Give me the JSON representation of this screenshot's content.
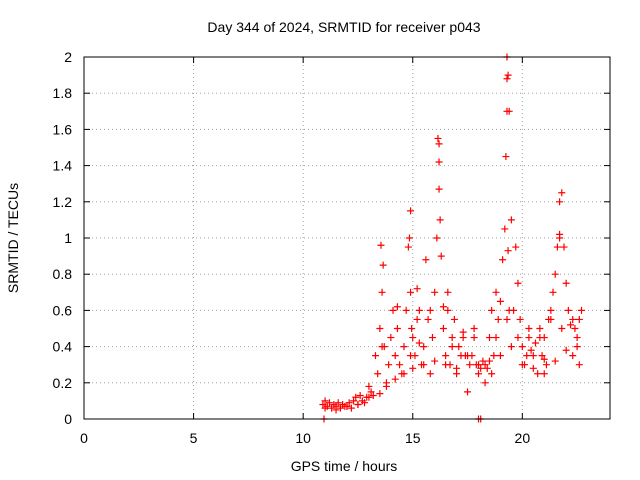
{
  "chart_data": {
    "type": "scatter",
    "title": "Day 344 of 2024, SRMTID for receiver p043",
    "xlabel": "GPS time / hours",
    "ylabel": "SRMTID / TECUs",
    "xlim": [
      0,
      24
    ],
    "ylim": [
      0,
      2
    ],
    "xticks": [
      0,
      5,
      10,
      15,
      20
    ],
    "xtick_labels": [
      "0",
      "5",
      "10",
      "15",
      "20"
    ],
    "yticks": [
      0,
      0.2,
      0.4,
      0.6,
      0.8,
      1,
      1.2,
      1.4,
      1.6,
      1.8,
      2
    ],
    "ytick_labels": [
      "0",
      "0.2",
      "0.4",
      "0.6",
      "0.8",
      "1",
      "1.2",
      "1.4",
      "1.6",
      "1.8",
      "2"
    ],
    "grid": true,
    "marker": "+",
    "marker_color": "#ff0000",
    "series": [
      {
        "name": "SRMTID",
        "x": [
          10.9,
          11.0,
          11.1,
          11.2,
          11.3,
          11.4,
          11.5,
          11.6,
          11.7,
          11.8,
          11.9,
          12.0,
          12.1,
          12.2,
          12.3,
          12.4,
          12.5,
          12.6,
          12.7,
          12.8,
          12.9,
          13.0,
          13.1,
          13.2,
          13.3,
          13.4,
          13.5,
          13.55,
          13.6,
          13.7,
          13.8,
          13.9,
          14.0,
          14.1,
          14.2,
          14.3,
          14.4,
          14.5,
          14.6,
          14.7,
          14.8,
          14.85,
          14.9,
          14.95,
          15.0,
          15.1,
          15.2,
          15.3,
          15.4,
          15.5,
          15.6,
          15.7,
          15.8,
          15.9,
          16.0,
          16.1,
          16.15,
          16.2,
          16.25,
          16.3,
          16.4,
          16.5,
          16.6,
          16.7,
          16.8,
          16.9,
          17.0,
          17.1,
          17.2,
          17.3,
          17.4,
          17.5,
          17.6,
          17.7,
          17.8,
          17.9,
          18.0,
          18.1,
          18.2,
          18.3,
          18.4,
          18.5,
          18.6,
          18.7,
          18.8,
          18.9,
          19.0,
          19.1,
          19.2,
          19.25,
          19.3,
          19.35,
          19.4,
          19.5,
          19.6,
          19.7,
          19.8,
          19.9,
          20.0,
          20.1,
          20.2,
          20.3,
          20.4,
          20.5,
          20.6,
          20.7,
          20.8,
          20.9,
          21.0,
          21.1,
          21.2,
          21.3,
          21.4,
          21.5,
          21.6,
          21.7,
          21.8,
          21.9,
          22.0,
          22.1,
          22.2,
          22.3,
          22.4,
          22.5,
          22.6,
          22.7,
          11.0,
          11.5,
          12.0,
          12.5,
          13.0,
          13.5,
          13.8,
          14.2,
          14.6,
          15.0,
          15.5,
          16.0,
          16.5,
          17.0,
          17.5,
          18.0,
          18.5,
          19.0,
          19.5,
          20.0,
          20.5,
          21.0,
          21.5,
          22.0,
          22.5,
          13.6,
          14.3,
          14.9,
          15.3,
          15.8,
          16.4,
          16.8,
          17.3,
          17.8,
          18.3,
          18.8,
          19.4,
          19.8,
          20.3,
          20.8,
          21.3,
          21.8,
          22.3,
          22.6,
          15.2,
          16.6,
          18.6,
          21.0,
          19.3,
          19.3,
          19.3,
          16.2,
          16.2,
          21.7,
          21.7,
          14.9,
          13.65,
          19.35,
          18.0,
          18.1,
          10.95
        ],
        "y": [
          0.08,
          0.1,
          0.07,
          0.09,
          0.06,
          0.08,
          0.07,
          0.09,
          0.06,
          0.08,
          0.07,
          0.07,
          0.09,
          0.06,
          0.1,
          0.12,
          0.08,
          0.13,
          0.1,
          0.09,
          0.12,
          0.18,
          0.15,
          0.13,
          0.35,
          0.25,
          0.5,
          0.96,
          0.7,
          0.4,
          0.18,
          0.3,
          0.45,
          0.6,
          0.35,
          0.5,
          0.3,
          0.25,
          0.4,
          0.6,
          0.95,
          1.0,
          0.7,
          0.5,
          0.45,
          0.35,
          0.55,
          0.6,
          0.3,
          0.4,
          0.88,
          0.55,
          0.25,
          0.45,
          0.7,
          1.0,
          1.55,
          1.27,
          1.1,
          0.9,
          0.5,
          0.35,
          0.7,
          0.3,
          0.45,
          0.55,
          0.25,
          0.4,
          0.35,
          0.48,
          0.35,
          0.15,
          0.3,
          0.35,
          0.45,
          0.3,
          0.25,
          0.28,
          0.32,
          0.3,
          0.28,
          0.45,
          0.6,
          0.35,
          0.7,
          0.55,
          0.65,
          0.88,
          1.05,
          1.45,
          2.0,
          1.9,
          1.7,
          1.1,
          0.6,
          0.95,
          0.75,
          0.55,
          0.4,
          0.3,
          0.35,
          0.45,
          0.38,
          0.28,
          0.42,
          0.25,
          0.5,
          0.35,
          0.45,
          0.3,
          0.55,
          0.6,
          0.7,
          0.8,
          0.95,
          1.0,
          1.25,
          0.95,
          0.75,
          0.6,
          0.52,
          0.55,
          0.5,
          0.45,
          0.3,
          0.6,
          0.06,
          0.05,
          0.07,
          0.08,
          0.12,
          0.14,
          0.2,
          0.22,
          0.25,
          0.28,
          0.3,
          0.32,
          0.3,
          0.28,
          0.35,
          0.3,
          0.32,
          0.35,
          0.4,
          0.3,
          0.35,
          0.33,
          0.32,
          0.38,
          0.4,
          0.4,
          0.62,
          0.35,
          0.42,
          0.6,
          0.62,
          0.4,
          0.45,
          0.5,
          0.2,
          0.45,
          0.6,
          0.45,
          0.5,
          0.45,
          0.55,
          0.5,
          0.35,
          0.55,
          0.72,
          0.6,
          0.25,
          0.25,
          0.55,
          1.88,
          1.7,
          1.52,
          1.42,
          1.02,
          1.2,
          1.15,
          0.85,
          0.93,
          0.0,
          0.0,
          0.0
        ],
        "color": "#ff0000"
      }
    ]
  }
}
